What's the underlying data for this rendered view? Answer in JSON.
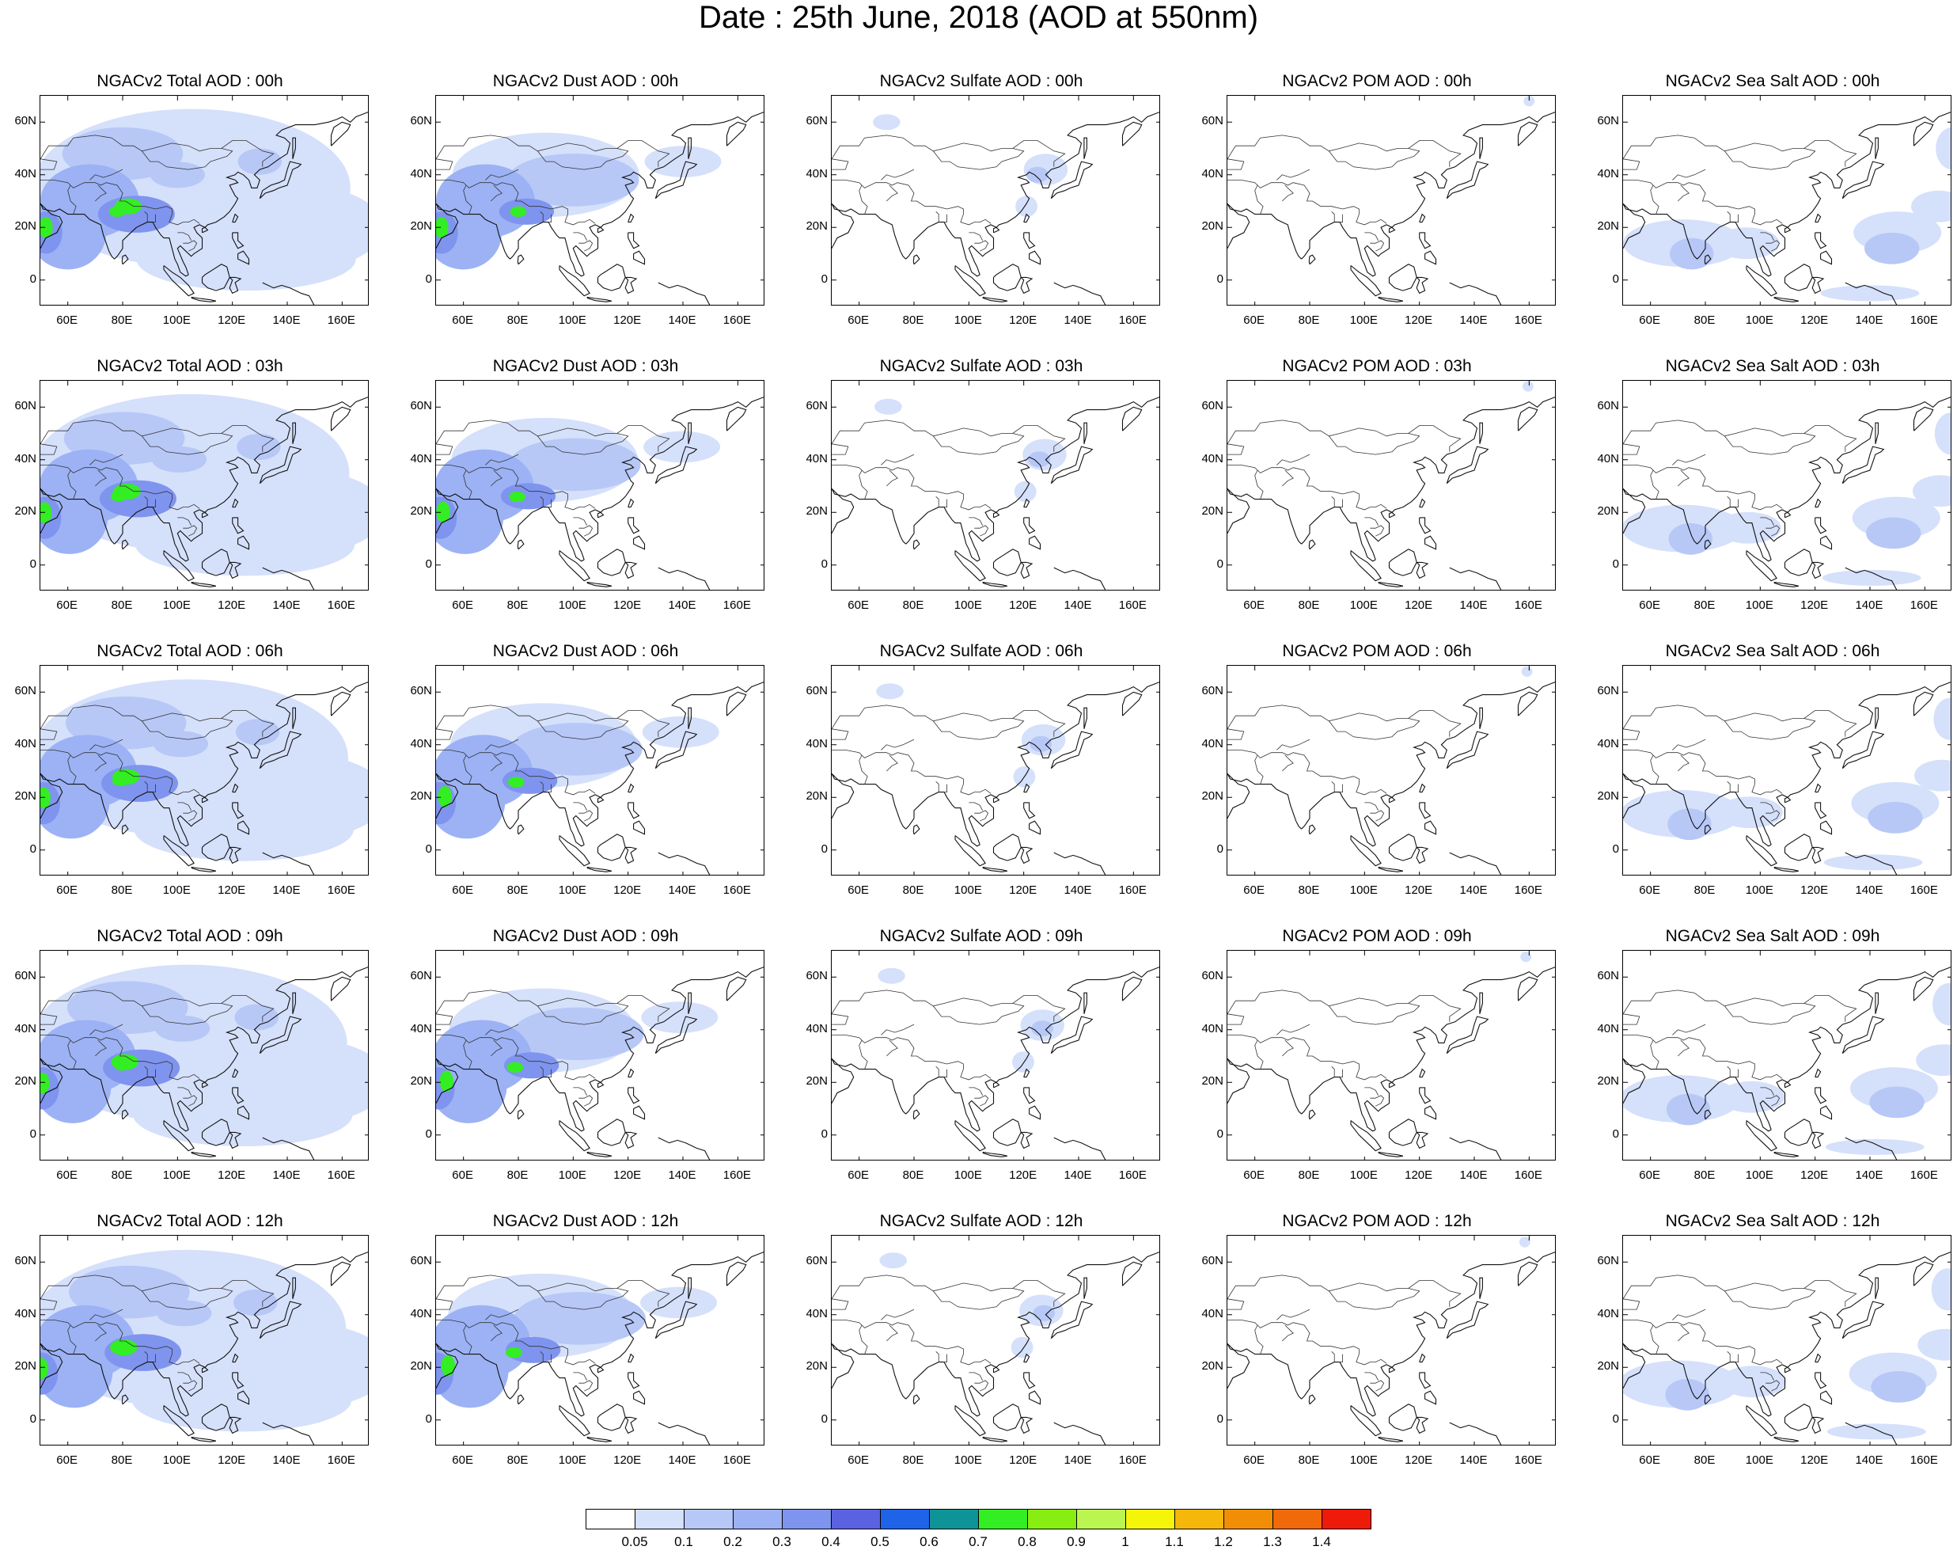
{
  "title": "Date : 25th June, 2018 (AOD at 550nm)",
  "panels": [
    [
      "NGACv2 Total AOD : 00h",
      "NGACv2 Dust AOD : 00h",
      "NGACv2 Sulfate AOD : 00h",
      "NGACv2 POM AOD : 00h",
      "NGACv2 Sea Salt AOD : 00h"
    ],
    [
      "NGACv2 Total AOD : 03h",
      "NGACv2 Dust AOD : 03h",
      "NGACv2 Sulfate AOD : 03h",
      "NGACv2 POM AOD : 03h",
      "NGACv2 Sea Salt AOD : 03h"
    ],
    [
      "NGACv2 Total AOD : 06h",
      "NGACv2 Dust AOD : 06h",
      "NGACv2 Sulfate AOD : 06h",
      "NGACv2 POM AOD : 06h",
      "NGACv2 Sea Salt AOD : 06h"
    ],
    [
      "NGACv2 Total AOD : 09h",
      "NGACv2 Dust AOD : 09h",
      "NGACv2 Sulfate AOD : 09h",
      "NGACv2 POM AOD : 09h",
      "NGACv2 Sea Salt  AOD : 09h"
    ],
    [
      "NGACv2 Total AOD  : 12h",
      "NGACv2 Dust AOD : 12h",
      "NGACv2 Sulfate AOD : 12h",
      "NGACv2 POM  AOD : 12h",
      "NGACv2 Sea Salt  AOD : 12h"
    ]
  ],
  "y_ticks": [
    "60N",
    "40N",
    "20N",
    "0"
  ],
  "x_ticks": [
    "60E",
    "80E",
    "100E",
    "120E",
    "140E",
    "160E"
  ],
  "colorbar": {
    "labels": [
      "0.05",
      "0.1",
      "0.2",
      "0.3",
      "0.4",
      "0.5",
      "0.6",
      "0.7",
      "0.8",
      "0.9",
      "1",
      "1.1",
      "1.2",
      "1.3",
      "1.4"
    ],
    "colors": [
      "#ffffff",
      "#d5e0fb",
      "#b7c8f7",
      "#9cb2f5",
      "#7f94ee",
      "#5a62e1",
      "#1e63e8",
      "#0e9497",
      "#33ee22",
      "#88ee11",
      "#bbf550",
      "#f5f50a",
      "#f5b70a",
      "#f28e05",
      "#f06a0a",
      "#ee1a0a"
    ]
  },
  "palette": {
    "light": "#d5e0fb",
    "mid": "#b7c8f7",
    "dark": "#9cb2f5",
    "deeper": "#7f94ee",
    "deepest": "#5a62e1",
    "green": "#33ee22",
    "lime": "#bbf550"
  }
}
